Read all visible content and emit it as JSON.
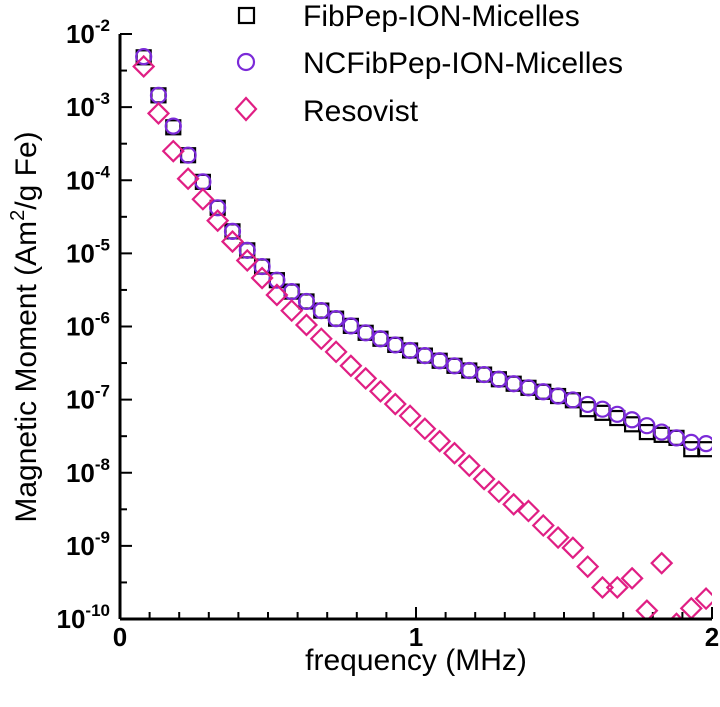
{
  "chart_data": {
    "type": "scatter",
    "xlabel": "frequency (MHz)",
    "ylabel": {
      "main": "Magnetic Moment (Am",
      "sup": "2",
      "rest": "/g Fe)"
    },
    "xlim": [
      0,
      2
    ],
    "ylim_exp": [
      -10,
      -2
    ],
    "yscale": "log",
    "xticks": [
      {
        "value": 0,
        "label": "0"
      },
      {
        "value": 1,
        "label": "1"
      },
      {
        "value": 2,
        "label": "2"
      }
    ],
    "yticks": [
      {
        "exp": -2,
        "base": "10",
        "sup": "-2"
      },
      {
        "exp": -3,
        "base": "10",
        "sup": "-3"
      },
      {
        "exp": -4,
        "base": "10",
        "sup": "-4"
      },
      {
        "exp": -5,
        "base": "10",
        "sup": "-5"
      },
      {
        "exp": -6,
        "base": "10",
        "sup": "-6"
      },
      {
        "exp": -7,
        "base": "10",
        "sup": "-7"
      },
      {
        "exp": -8,
        "base": "10",
        "sup": "-8"
      },
      {
        "exp": -9,
        "base": "10",
        "sup": "-9"
      },
      {
        "exp": -10,
        "base": "10",
        "sup": "-10"
      }
    ],
    "legend_position": "top-right",
    "series": [
      {
        "name": "FibPep-ION-Micelles",
        "marker": "square",
        "color": "#000000",
        "x": [
          0.08,
          0.13,
          0.18,
          0.23,
          0.28,
          0.33,
          0.38,
          0.43,
          0.48,
          0.53,
          0.58,
          0.63,
          0.68,
          0.73,
          0.78,
          0.83,
          0.88,
          0.93,
          0.98,
          1.03,
          1.08,
          1.13,
          1.18,
          1.23,
          1.28,
          1.33,
          1.38,
          1.43,
          1.48,
          1.53,
          1.58,
          1.63,
          1.68,
          1.73,
          1.78,
          1.83,
          1.88,
          1.93,
          1.98
        ],
        "y": [
          0.0048,
          0.00145,
          0.00053,
          0.00022,
          9.5e-05,
          4.2e-05,
          2e-05,
          1.1e-05,
          6.6e-06,
          4.3e-06,
          3e-06,
          2.2e-06,
          1.65e-06,
          1.28e-06,
          1.02e-06,
          8.2e-07,
          6.8e-07,
          5.6e-07,
          4.7e-07,
          4e-07,
          3.4e-07,
          2.9e-07,
          2.5e-07,
          2.2e-07,
          1.9e-07,
          1.65e-07,
          1.45e-07,
          1.28e-07,
          1.12e-07,
          9.8e-08,
          7.4e-08,
          6.6e-08,
          5.6e-08,
          4.6e-08,
          3.6e-08,
          3.3e-08,
          3e-08,
          2.1e-08,
          2.1e-08
        ]
      },
      {
        "name": "NCFibPep-ION-Micelles",
        "marker": "circle",
        "color": "#7b2ad8",
        "x": [
          0.08,
          0.13,
          0.18,
          0.23,
          0.28,
          0.33,
          0.38,
          0.43,
          0.48,
          0.53,
          0.58,
          0.63,
          0.68,
          0.73,
          0.78,
          0.83,
          0.88,
          0.93,
          0.98,
          1.03,
          1.08,
          1.13,
          1.18,
          1.23,
          1.28,
          1.33,
          1.38,
          1.43,
          1.48,
          1.53,
          1.58,
          1.63,
          1.68,
          1.73,
          1.78,
          1.83,
          1.88,
          1.93,
          1.98
        ],
        "y": [
          0.0049,
          0.00145,
          0.00055,
          0.00022,
          9.5e-05,
          4.2e-05,
          2e-05,
          1.1e-05,
          6.6e-06,
          4.3e-06,
          3e-06,
          2.2e-06,
          1.65e-06,
          1.28e-06,
          1.02e-06,
          8.2e-07,
          6.8e-07,
          5.6e-07,
          4.7e-07,
          4e-07,
          3.4e-07,
          2.9e-07,
          2.5e-07,
          2.2e-07,
          1.9e-07,
          1.65e-07,
          1.45e-07,
          1.28e-07,
          1.12e-07,
          9.9e-08,
          8.6e-08,
          7.4e-08,
          6.3e-08,
          5.3e-08,
          4.4e-08,
          3.6e-08,
          3e-08,
          2.6e-08,
          2.5e-08
        ]
      },
      {
        "name": "Resovist",
        "marker": "diamond",
        "color": "#e01f84",
        "x": [
          0.08,
          0.13,
          0.18,
          0.23,
          0.28,
          0.33,
          0.38,
          0.43,
          0.48,
          0.53,
          0.58,
          0.63,
          0.68,
          0.73,
          0.78,
          0.83,
          0.88,
          0.93,
          0.98,
          1.03,
          1.08,
          1.13,
          1.18,
          1.23,
          1.28,
          1.33,
          1.38,
          1.43,
          1.48,
          1.53,
          1.58,
          1.63,
          1.68,
          1.73,
          1.78,
          1.83,
          1.88,
          1.93,
          1.98
        ],
        "y": [
          0.0036,
          0.00082,
          0.00025,
          0.000105,
          5.5e-05,
          2.8e-05,
          1.45e-05,
          8e-06,
          4.6e-06,
          2.7e-06,
          1.65e-06,
          1.05e-06,
          6.8e-07,
          4.5e-07,
          2.9e-07,
          1.95e-07,
          1.3e-07,
          8.7e-08,
          6e-08,
          4e-08,
          2.7e-08,
          1.85e-08,
          1.25e-08,
          8.2e-09,
          5.5e-09,
          3.7e-09,
          3e-09,
          1.9e-09,
          1.3e-09,
          9.4e-10,
          5.2e-10,
          2.7e-10,
          2.7e-10,
          3.6e-10,
          1.3e-10,
          5.8e-10,
          8.6e-11,
          1.4e-10,
          1.9e-10
        ]
      }
    ]
  }
}
